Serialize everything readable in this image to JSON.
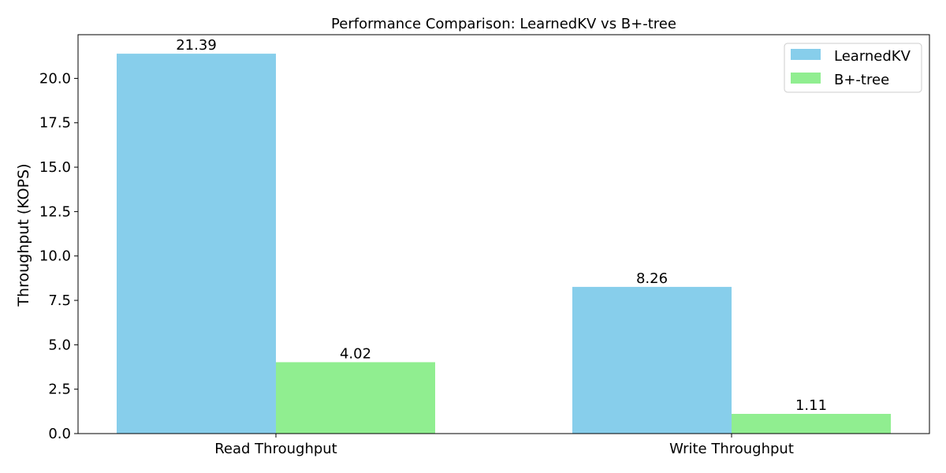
{
  "chart_data": {
    "type": "bar",
    "title": "Performance Comparison: LearnedKV vs B+-tree",
    "xlabel": "",
    "ylabel": "Throughput (KOPS)",
    "categories": [
      "Read Throughput",
      "Write Throughput"
    ],
    "series": [
      {
        "name": "LearnedKV",
        "values": [
          21.39,
          8.26
        ],
        "color": "#87CEEB"
      },
      {
        "name": "B+-tree",
        "values": [
          4.02,
          1.11
        ],
        "color": "#90EE90"
      }
    ],
    "value_labels": [
      [
        "21.39",
        "8.26"
      ],
      [
        "4.02",
        "1.11"
      ]
    ],
    "ylim": [
      0,
      22.46
    ],
    "yticks": [
      0.0,
      2.5,
      5.0,
      7.5,
      10.0,
      12.5,
      15.0,
      17.5,
      20.0
    ],
    "ytick_labels": [
      "0.0",
      "2.5",
      "5.0",
      "7.5",
      "10.0",
      "12.5",
      "15.0",
      "17.5",
      "20.0"
    ],
    "legend_position": "top-right",
    "grid": false
  }
}
